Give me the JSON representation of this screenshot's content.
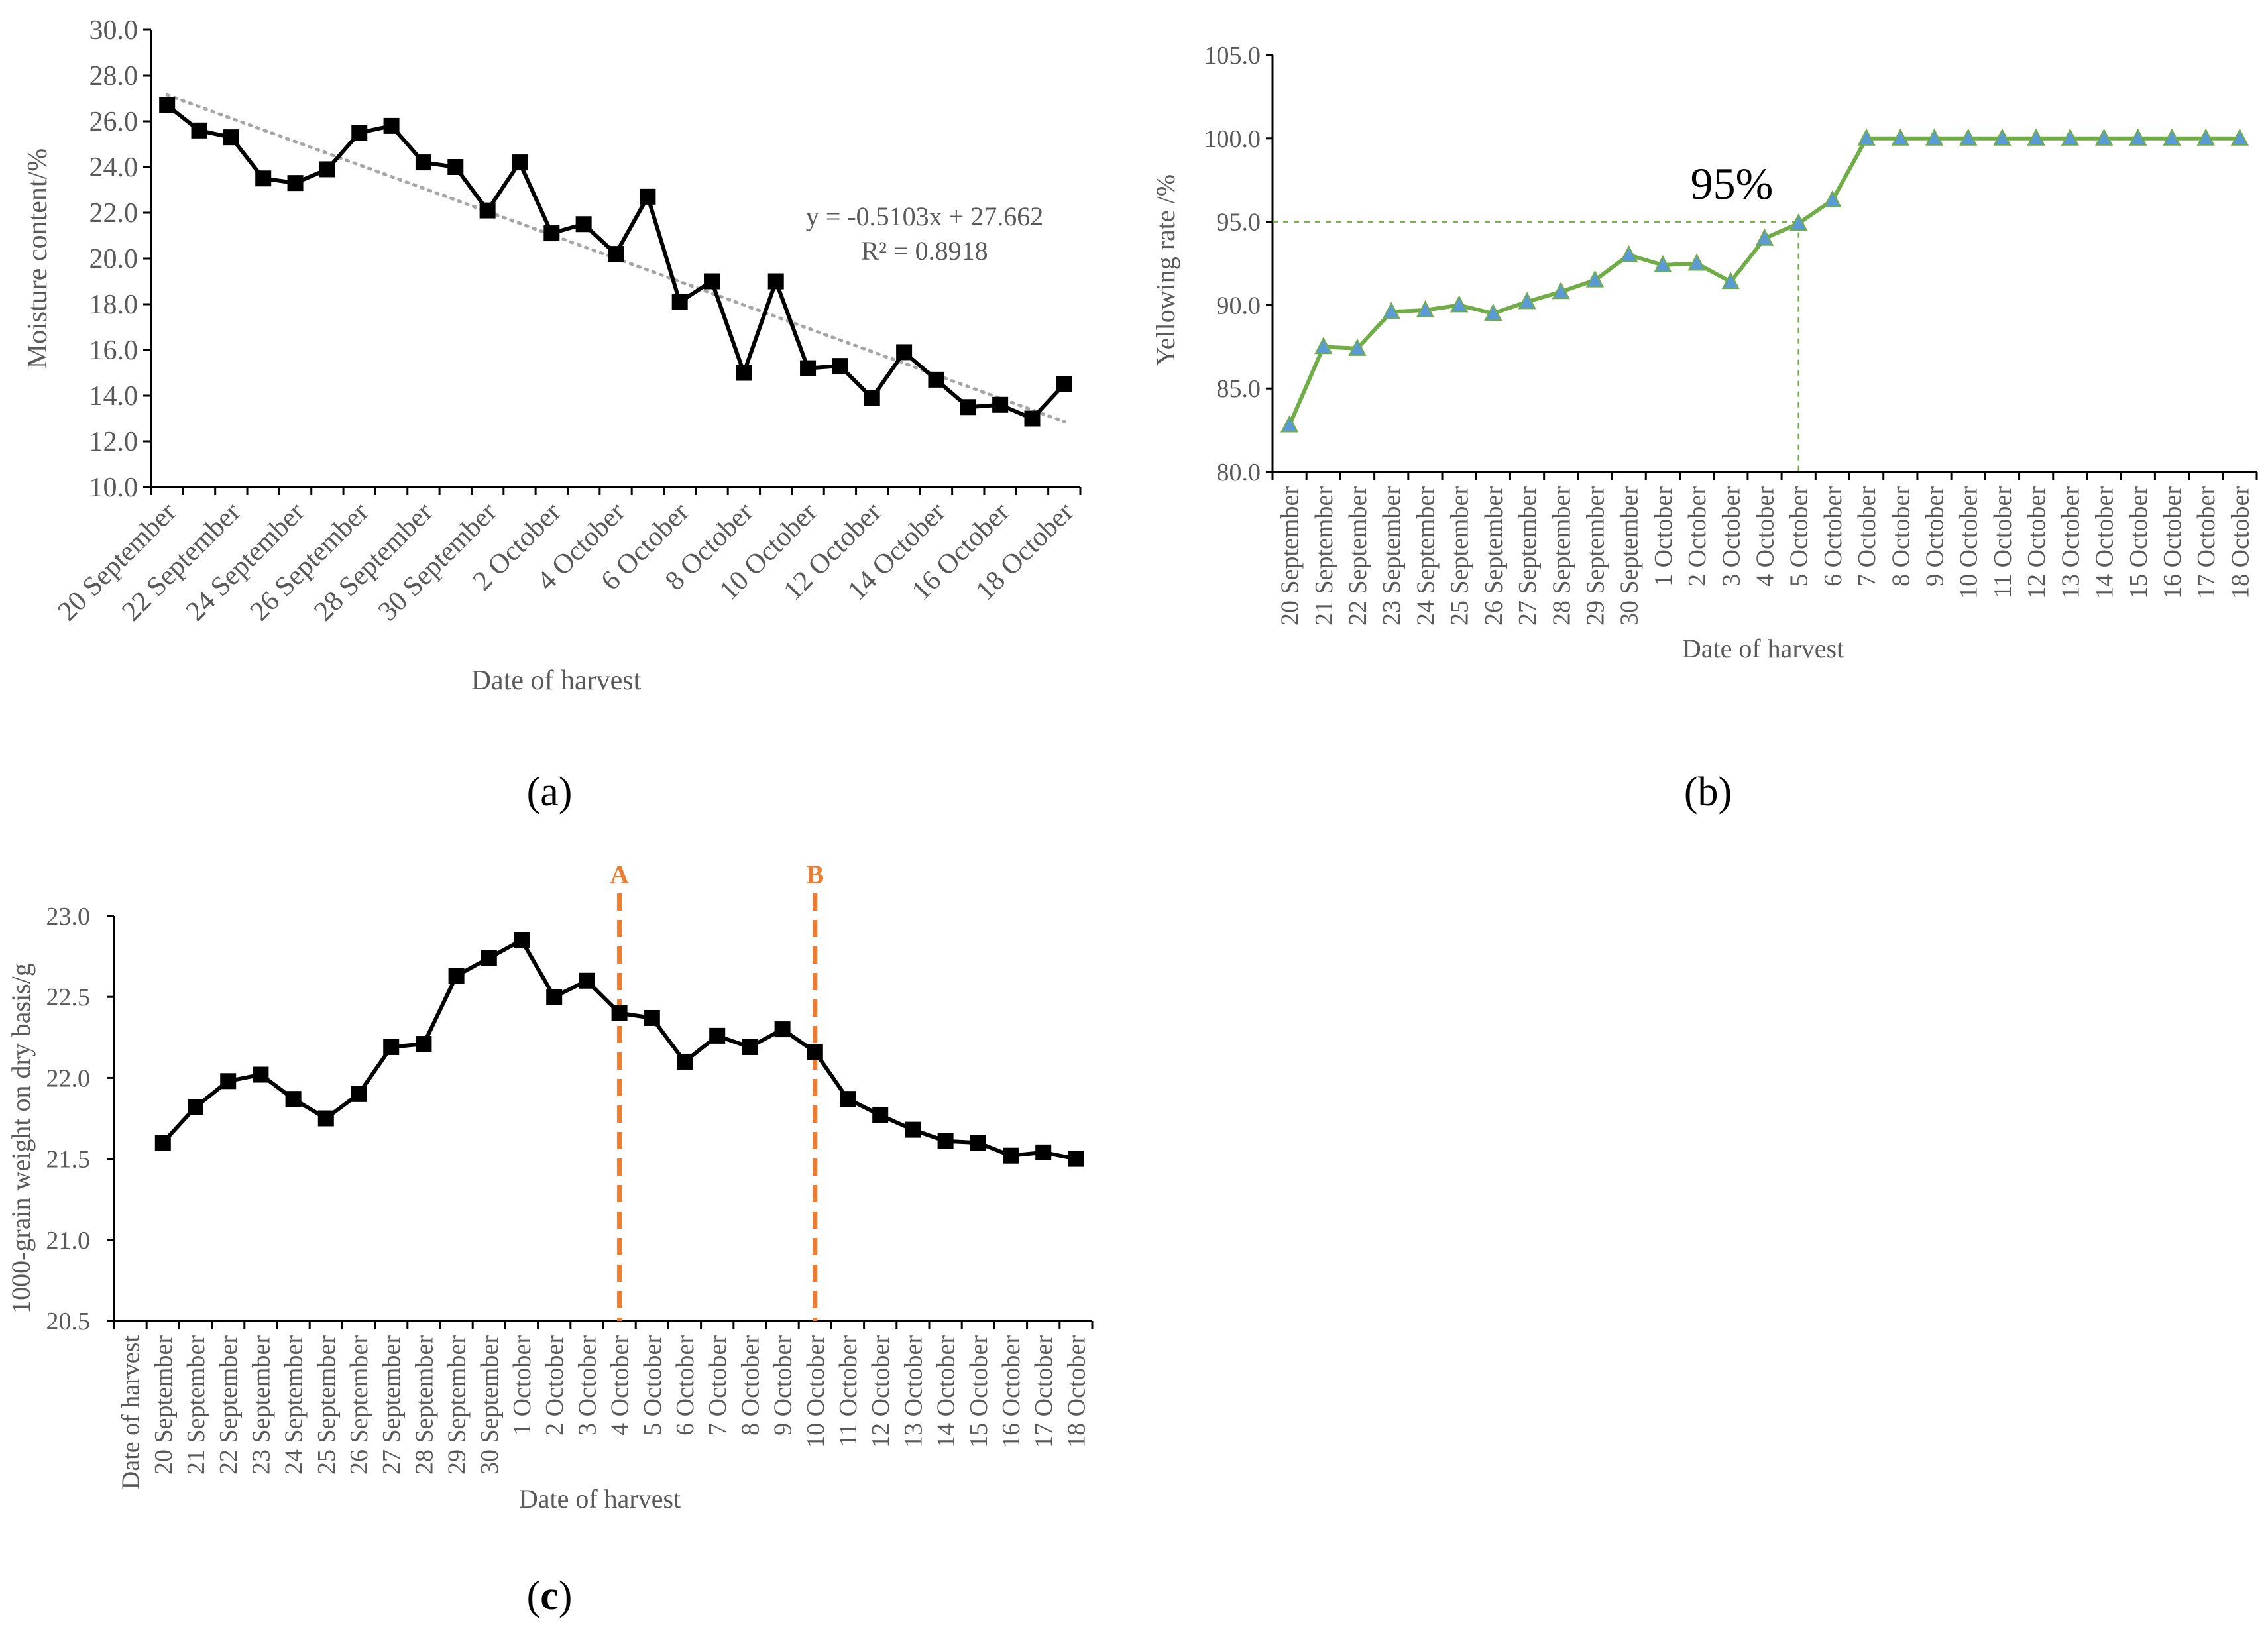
{
  "chart_data": [
    {
      "panel": "(a)",
      "type": "line",
      "xlabel": "Date of harvest",
      "ylabel": "Moisture content/%",
      "ylim": [
        10,
        30
      ],
      "yticks": [
        "10.0",
        "12.0",
        "14.0",
        "16.0",
        "18.0",
        "20.0",
        "22.0",
        "24.0",
        "26.0",
        "28.0",
        "30.0"
      ],
      "categories": [
        "20 September",
        "21 September",
        "22 September",
        "23 September",
        "24 September",
        "25 September",
        "26 September",
        "27 September",
        "28 September",
        "29 September",
        "30 September",
        "1 October",
        "2 October",
        "3 October",
        "4 October",
        "5 October",
        "6 October",
        "7 October",
        "8 October",
        "9 October",
        "10 October",
        "11 October",
        "12 October",
        "13 October",
        "14 October",
        "15 October",
        "16 October",
        "17 October",
        "18 October"
      ],
      "tick_labels": [
        "20 September",
        "22 September",
        "24 September",
        "26 September",
        "28 September",
        "30 September",
        "2 October",
        "4 October",
        "6 October",
        "8 October",
        "10 October",
        "12 October",
        "14 October",
        "16 October",
        "18 October"
      ],
      "series": [
        {
          "name": "Moisture content",
          "color": "#000000",
          "marker": "square",
          "values": [
            26.7,
            25.6,
            25.3,
            23.5,
            23.3,
            23.9,
            25.5,
            25.8,
            24.2,
            24.0,
            22.1,
            24.2,
            21.1,
            21.5,
            20.2,
            22.7,
            18.1,
            19.0,
            15.0,
            19.0,
            15.2,
            15.3,
            13.9,
            15.9,
            14.7,
            13.5,
            13.6,
            13.0,
            14.5
          ]
        }
      ],
      "trendline": {
        "slope": -0.5103,
        "intercept": 27.662,
        "color": "#A6A6A6"
      },
      "equation": "y = -0.5103x + 27.662",
      "r_squared": "R² = 0.8918"
    },
    {
      "panel": "(b)",
      "type": "line",
      "xlabel": "Date of harvest",
      "ylabel": "Yellowing rate /%",
      "ylim": [
        80,
        105
      ],
      "yticks": [
        "80.0",
        "85.0",
        "90.0",
        "95.0",
        "100.0",
        "105.0"
      ],
      "categories": [
        "20 September",
        "21 September",
        "22 September",
        "23 September",
        "24 September",
        "25 September",
        "26 September",
        "27 September",
        "28 September",
        "29 September",
        "30 September",
        "1 October",
        "2 October",
        "3 October",
        "4 October",
        "5 October",
        "6 October",
        "7 October",
        "8 October",
        "9 October",
        "10 October",
        "11 October",
        "12 October",
        "13 October",
        "14 October",
        "15 October",
        "16 October",
        "17 October",
        "18 October"
      ],
      "series": [
        {
          "name": "Yellowing rate",
          "color": "#70AD47",
          "marker_color": "#5B9BD5",
          "marker": "triangle",
          "values": [
            82.8,
            87.5,
            87.4,
            89.6,
            89.7,
            90.0,
            89.5,
            90.2,
            90.8,
            91.5,
            93.0,
            92.4,
            92.5,
            91.4,
            94.0,
            94.9,
            96.3,
            100,
            100,
            100,
            100,
            100,
            100,
            100,
            100,
            100,
            100,
            100,
            100
          ]
        }
      ],
      "reference_value": 95,
      "reference_color": "#70AD47",
      "annotation": "95%"
    },
    {
      "panel": "(c)",
      "type": "line",
      "xlabel": "Date of harvest",
      "ylabel": "1000-grain weight on dry basis/g",
      "ylim": [
        20.5,
        23.0
      ],
      "yticks": [
        "20.5",
        "21.0",
        "21.5",
        "22.0",
        "22.5",
        "23.0"
      ],
      "categories": [
        "Date of harvest",
        "20 September",
        "21 September",
        "22 September",
        "23 September",
        "24 September",
        "25 September",
        "26 September",
        "27 September",
        "28 September",
        "29 September",
        "30 September",
        "1 October",
        "2 October",
        "3 October",
        "4 October",
        "5 October",
        "6 October",
        "7 October",
        "8 October",
        "9 October",
        "10 October",
        "11 October",
        "12 October",
        "13 October",
        "14 October",
        "15 October",
        "16 October",
        "17 October",
        "18 October"
      ],
      "series": [
        {
          "name": "1000-grain weight",
          "color": "#000000",
          "marker": "square",
          "values": [
            null,
            21.6,
            21.82,
            21.98,
            22.02,
            21.87,
            21.75,
            21.9,
            22.19,
            22.21,
            22.63,
            22.74,
            22.85,
            22.5,
            22.6,
            22.4,
            22.37,
            22.1,
            22.26,
            22.19,
            22.3,
            22.16,
            21.87,
            21.77,
            21.68,
            21.61,
            21.6,
            21.52,
            21.54,
            21.5
          ]
        }
      ],
      "markers": [
        {
          "label": "A",
          "at": "4 October",
          "color": "#ED7D31"
        },
        {
          "label": "B",
          "at": "10 October",
          "color": "#ED7D31"
        }
      ]
    }
  ]
}
